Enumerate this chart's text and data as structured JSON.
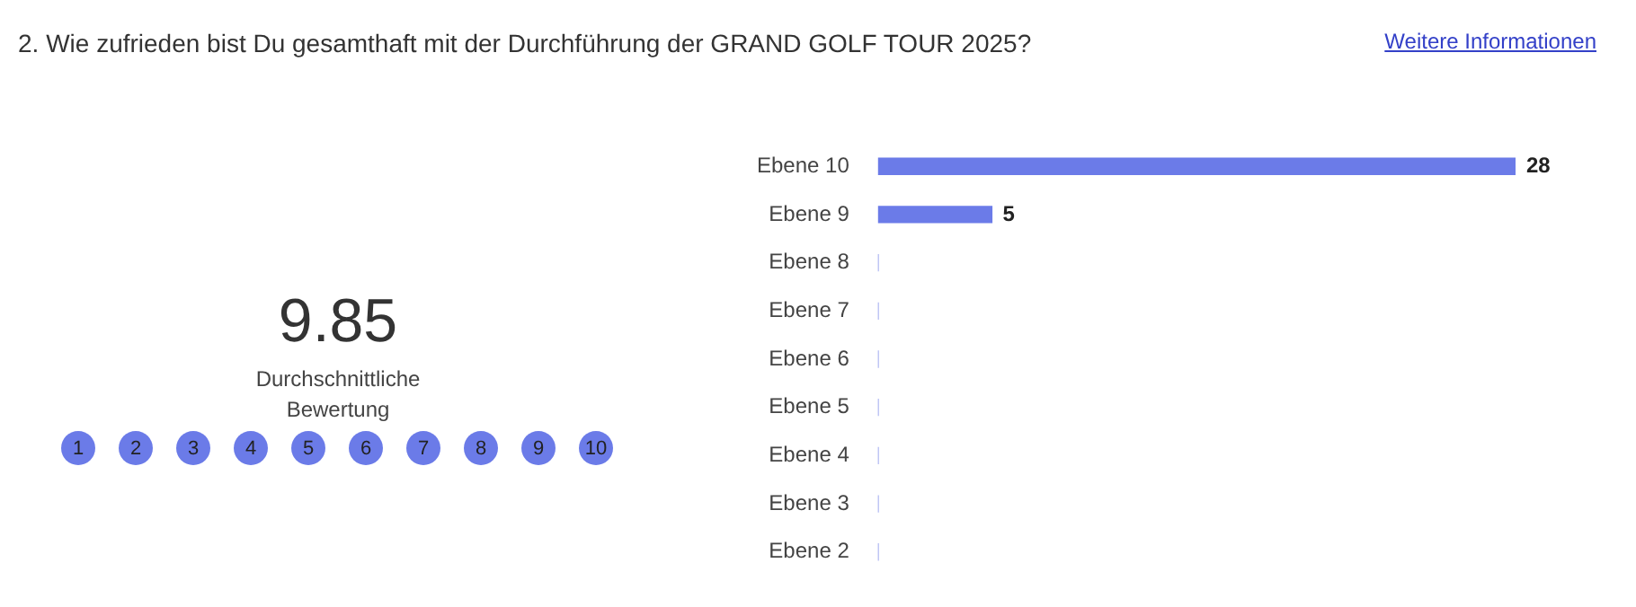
{
  "chart_data": {
    "type": "bar",
    "orientation": "horizontal",
    "title": "2. Wie zufrieden bist Du gesamthaft mit der Durchführung der GRAND GOLF TOUR 2025?",
    "annotations": [
      "Weitere Informationen",
      "9.85",
      "Durchschnittliche Bewertung",
      "1",
      "2",
      "3",
      "4",
      "5",
      "6",
      "7",
      "8",
      "9",
      "10"
    ],
    "categories": [
      "Ebene 10",
      "Ebene 9",
      "Ebene 8",
      "Ebene 7",
      "Ebene 6",
      "Ebene 5",
      "Ebene 4",
      "Ebene 3",
      "Ebene 2"
    ],
    "values": [
      28,
      5,
      0,
      0,
      0,
      0,
      0,
      0,
      0
    ],
    "value_labels": [
      "28",
      "5",
      null,
      null,
      null,
      null,
      null,
      null,
      null
    ],
    "color": "#6b7be8",
    "grid": false,
    "legend": false
  }
}
